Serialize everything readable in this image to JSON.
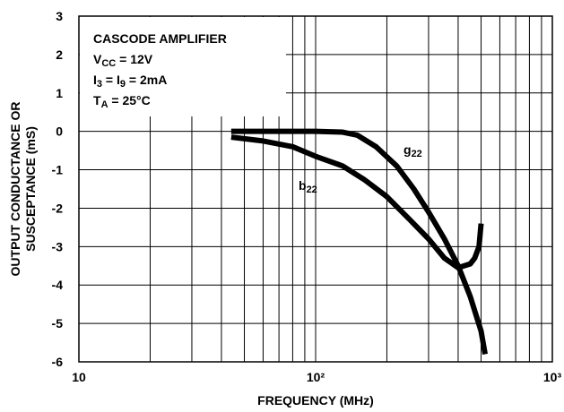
{
  "chart_data": {
    "type": "line",
    "annotations": [
      [
        {
          "t": "CASCODE AMPLIFIER"
        }
      ],
      [
        {
          "t": "V"
        },
        {
          "sub": "CC"
        },
        {
          "t": " = 12V"
        }
      ],
      [
        {
          "t": "I"
        },
        {
          "sub": "3"
        },
        {
          "t": " = I"
        },
        {
          "sub": "9"
        },
        {
          "t": " = 2mA"
        }
      ],
      [
        {
          "t": "T"
        },
        {
          "sub": "A"
        },
        {
          "t": " = 25°C"
        }
      ]
    ],
    "xlabel": "FREQUENCY (MHz)",
    "ylabel": [
      "OUTPUT CONDUCTANCE OR",
      "SUSCEPTANCE (mS)"
    ],
    "xlog": true,
    "xlim": [
      10,
      1000
    ],
    "xticks": [
      10,
      {
        "value": 100,
        "label": "10²"
      },
      {
        "value": 1000,
        "label": "10³"
      }
    ],
    "xminor": [
      20,
      30,
      40,
      50,
      60,
      70,
      80,
      90,
      200,
      300,
      400,
      500,
      600,
      700,
      800,
      900
    ],
    "ylim": [
      -6,
      3
    ],
    "yticks": [
      -6,
      -5,
      -4,
      -3,
      -2,
      -1,
      0,
      1,
      2,
      3
    ],
    "grid": true,
    "series": [
      {
        "name": "g",
        "name_sub": "22",
        "color": "#000000",
        "x": [
          44,
          100,
          130,
          150,
          180,
          220,
          260,
          300,
          350,
          400,
          450,
          500,
          520
        ],
        "values": [
          0,
          0,
          -0.02,
          -0.1,
          -0.4,
          -0.9,
          -1.5,
          -2.1,
          -2.8,
          -3.5,
          -4.3,
          -5.2,
          -5.8
        ]
      },
      {
        "name": "b",
        "name_sub": "22",
        "color": "#000000",
        "x": [
          44,
          60,
          80,
          100,
          130,
          160,
          200,
          250,
          300,
          350,
          400,
          450,
          470,
          490,
          500
        ],
        "values": [
          -0.15,
          -0.25,
          -0.4,
          -0.65,
          -0.9,
          -1.25,
          -1.7,
          -2.3,
          -2.8,
          -3.3,
          -3.55,
          -3.45,
          -3.3,
          -3.0,
          -2.4
        ]
      }
    ]
  }
}
